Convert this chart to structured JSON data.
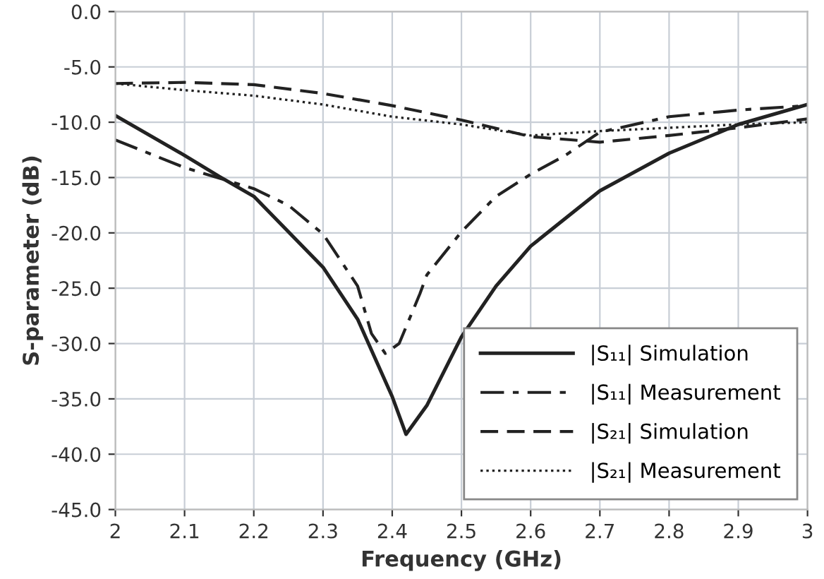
{
  "chart_data": {
    "type": "line",
    "xlabel": "Frequency (GHz)",
    "ylabel": "S-parameter (dB)",
    "xlim": [
      2,
      3
    ],
    "xticks": [
      2,
      2.1,
      2.2,
      2.3,
      2.4,
      2.5,
      2.6,
      2.7,
      2.8,
      2.9,
      3
    ],
    "ylim": [
      -45,
      0
    ],
    "yticks": [
      {
        "value": 0,
        "label": "0.0"
      },
      {
        "value": -5,
        "label": "-5.0"
      },
      {
        "value": -10,
        "label": "-10.0"
      },
      {
        "value": -15,
        "label": "-15.0"
      },
      {
        "value": -20,
        "label": "-20.0"
      },
      {
        "value": -25,
        "label": "-25.0"
      },
      {
        "value": -30,
        "label": "-30.0"
      },
      {
        "value": -35,
        "label": "-35.0"
      },
      {
        "value": -40,
        "label": "-40.0"
      },
      {
        "value": -45,
        "label": "-45.0"
      }
    ],
    "grid": true,
    "legend": "bottom right",
    "series": [
      {
        "name": "|S₁₁| Simulation",
        "color": "#222222",
        "line_style": "solid",
        "x": [
          2.0,
          2.1,
          2.15,
          2.2,
          2.3,
          2.35,
          2.4,
          2.42,
          2.45,
          2.5,
          2.55,
          2.6,
          2.7,
          2.8,
          2.9,
          3.0
        ],
        "values": [
          -9.4,
          -13.0,
          -14.9,
          -16.7,
          -23.1,
          -27.8,
          -34.8,
          -38.2,
          -35.6,
          -29.4,
          -24.8,
          -21.2,
          -16.2,
          -12.8,
          -10.2,
          -8.4
        ]
      },
      {
        "name": "|S₁₁| Measurement",
        "color": "#222222",
        "line_style": "dashdot",
        "x": [
          2.0,
          2.1,
          2.2,
          2.25,
          2.3,
          2.35,
          2.37,
          2.39,
          2.41,
          2.44,
          2.45,
          2.5,
          2.55,
          2.6,
          2.65,
          2.7,
          2.8,
          2.9,
          3.0
        ],
        "values": [
          -11.6,
          -14.1,
          -16.0,
          -17.5,
          -20.1,
          -24.8,
          -29.1,
          -30.9,
          -30.0,
          -25.5,
          -23.8,
          -19.9,
          -16.7,
          -14.7,
          -13.0,
          -10.9,
          -9.5,
          -8.9,
          -8.5
        ]
      },
      {
        "name": "|S₂₁| Simulation",
        "color": "#222222",
        "line_style": "dashed",
        "x": [
          2.0,
          2.1,
          2.2,
          2.3,
          2.4,
          2.5,
          2.6,
          2.7,
          2.8,
          2.9,
          3.0
        ],
        "values": [
          -6.5,
          -6.4,
          -6.6,
          -7.4,
          -8.5,
          -9.8,
          -11.3,
          -11.8,
          -11.2,
          -10.5,
          -9.7
        ]
      },
      {
        "name": "|S₂₁| Measurement",
        "color": "#222222",
        "line_style": "dotted",
        "x": [
          2.0,
          2.1,
          2.2,
          2.3,
          2.4,
          2.5,
          2.6,
          2.7,
          2.8,
          2.9,
          3.0
        ],
        "values": [
          -6.5,
          -7.1,
          -7.6,
          -8.4,
          -9.5,
          -10.2,
          -11.2,
          -10.8,
          -10.5,
          -10.2,
          -10.0
        ]
      }
    ]
  }
}
